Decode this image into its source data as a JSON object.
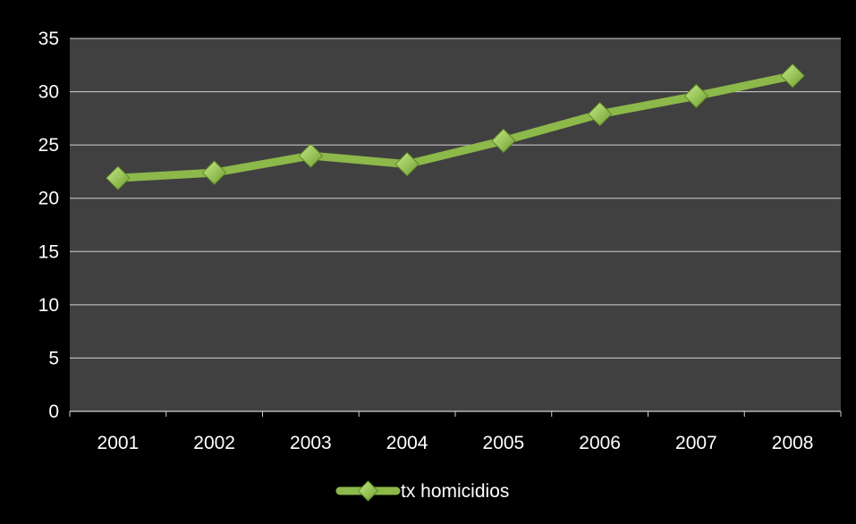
{
  "chart_data": {
    "type": "line",
    "title": "",
    "xlabel": "",
    "ylabel": "",
    "categories": [
      "2001",
      "2002",
      "2003",
      "2004",
      "2005",
      "2006",
      "2007",
      "2008"
    ],
    "series": [
      {
        "name": "tx homicidios",
        "values": [
          21.9,
          22.4,
          24.0,
          23.2,
          25.4,
          27.9,
          29.6,
          31.5
        ]
      }
    ],
    "ylim": [
      0,
      35
    ],
    "yticks": [
      "0",
      "5",
      "10",
      "15",
      "20",
      "25",
      "30",
      "35"
    ],
    "grid": true,
    "legend_position": "bottom",
    "colors": {
      "background": "#000000",
      "plot_area": "#404040",
      "gridline": "#d0d0d0",
      "series_line": "#8db84a",
      "marker": "#9bc65a",
      "text": "#ffffff"
    }
  }
}
